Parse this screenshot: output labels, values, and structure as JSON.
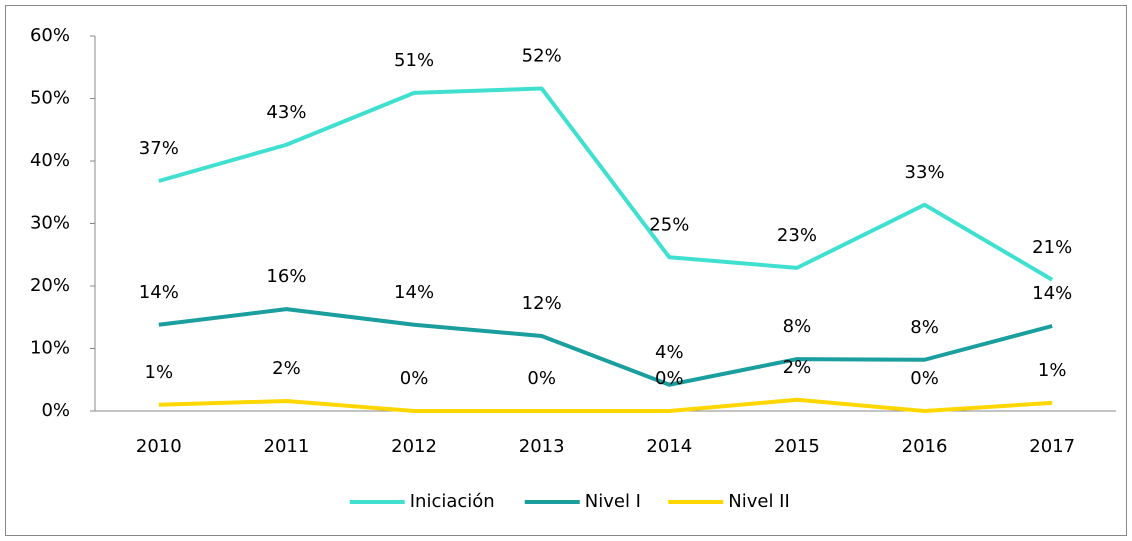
{
  "chart_data": {
    "type": "line",
    "categories": [
      "2010",
      "2011",
      "2012",
      "2013",
      "2014",
      "2015",
      "2016",
      "2017"
    ],
    "series": [
      {
        "name": "Iniciación",
        "color": "#40E0D0",
        "values": [
          36.8,
          42.6,
          50.9,
          51.6,
          24.6,
          22.9,
          33.0,
          21.0
        ],
        "value_labels": [
          "37%",
          "43%",
          "51%",
          "52%",
          "25%",
          "23%",
          "33%",
          "21%"
        ]
      },
      {
        "name": "Nivel I",
        "color": "#1A9E9E",
        "values": [
          13.8,
          16.3,
          13.8,
          12.0,
          4.2,
          8.3,
          8.2,
          13.6
        ],
        "value_labels": [
          "14%",
          "16%",
          "14%",
          "12%",
          "4%",
          "8%",
          "8%",
          "14%"
        ]
      },
      {
        "name": "Nivel II",
        "color": "#FFD700",
        "values": [
          1.0,
          1.6,
          0,
          0,
          0,
          1.8,
          0,
          1.3
        ],
        "value_labels": [
          "1%",
          "2%",
          "0%",
          "0%",
          "0%",
          "2%",
          "0%",
          "1%"
        ]
      }
    ],
    "ylim": [
      0,
      60
    ],
    "yticks": [
      {
        "value": 0,
        "label": "0%"
      },
      {
        "value": 10,
        "label": "10%"
      },
      {
        "value": 20,
        "label": "20%"
      },
      {
        "value": 30,
        "label": "30%"
      },
      {
        "value": 40,
        "label": "40%"
      },
      {
        "value": 50,
        "label": "50%"
      },
      {
        "value": 60,
        "label": "60%"
      }
    ],
    "grid": false,
    "legend": "bottom"
  }
}
